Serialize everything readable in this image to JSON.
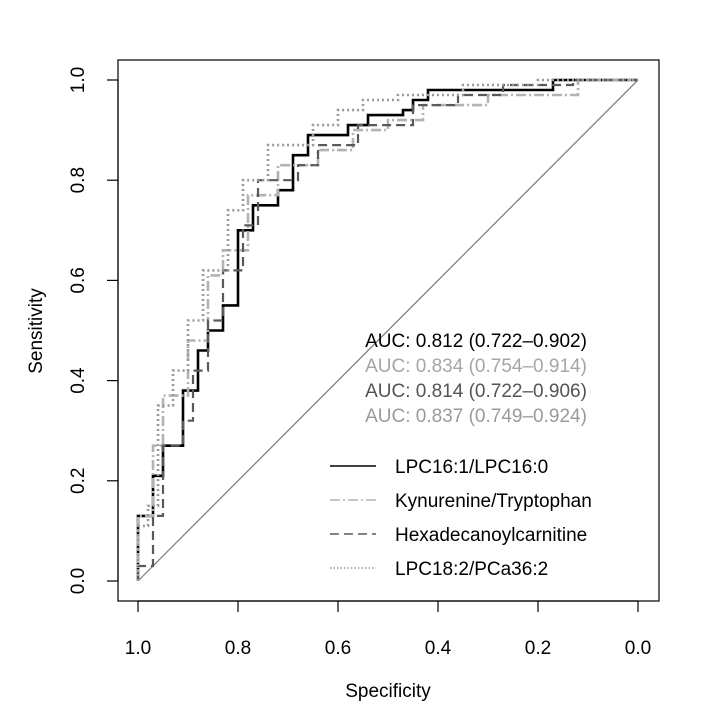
{
  "chart_data": {
    "type": "line",
    "title": "",
    "xlabel": "Specificity",
    "ylabel": "Sensitivity",
    "xlim": [
      1.0,
      0.0
    ],
    "ylim": [
      0.0,
      1.0
    ],
    "x_ticks": [
      "1.0",
      "0.8",
      "0.6",
      "0.4",
      "0.2",
      "0.0"
    ],
    "y_ticks": [
      "0.0",
      "0.2",
      "0.4",
      "0.6",
      "0.8",
      "1.0"
    ],
    "auc_labels": [
      {
        "text": "AUC: 0.812 (0.722–0.902)",
        "color": "#000000"
      },
      {
        "text": "AUC: 0.834 (0.754–0.914)",
        "color": "#a6a6a6"
      },
      {
        "text": "AUC: 0.814 (0.722–0.906)",
        "color": "#545454"
      },
      {
        "text": "AUC: 0.837 (0.749–0.924)",
        "color": "#9a9a9a"
      }
    ],
    "series": [
      {
        "name": "LPC16:1/LPC16:0",
        "color": "#000000",
        "dash": "solid",
        "width": 2.6,
        "x": [
          1.0,
          1.0,
          0.97,
          0.97,
          0.95,
          0.95,
          0.93,
          0.93,
          0.91,
          0.91,
          0.88,
          0.88,
          0.86,
          0.86,
          0.83,
          0.83,
          0.8,
          0.8,
          0.77,
          0.77,
          0.72,
          0.72,
          0.69,
          0.69,
          0.66,
          0.66,
          0.58,
          0.58,
          0.54,
          0.54,
          0.47,
          0.47,
          0.45,
          0.45,
          0.42,
          0.42,
          0.2,
          0.2,
          0.17,
          0.17,
          0.0
        ],
        "y": [
          0.0,
          0.13,
          0.13,
          0.21,
          0.21,
          0.27,
          0.27,
          0.27,
          0.27,
          0.38,
          0.38,
          0.46,
          0.46,
          0.5,
          0.5,
          0.55,
          0.55,
          0.7,
          0.7,
          0.75,
          0.75,
          0.78,
          0.78,
          0.85,
          0.85,
          0.89,
          0.89,
          0.91,
          0.91,
          0.93,
          0.93,
          0.94,
          0.94,
          0.96,
          0.96,
          0.98,
          0.98,
          0.98,
          0.98,
          1.0,
          1.0
        ]
      },
      {
        "name": "Kynurenine/Tryptophan",
        "color": "#b3b3b3",
        "dash": "dashdot",
        "width": 2.6,
        "x": [
          1.0,
          1.0,
          0.97,
          0.97,
          0.95,
          0.95,
          0.9,
          0.9,
          0.86,
          0.86,
          0.83,
          0.83,
          0.78,
          0.78,
          0.72,
          0.72,
          0.64,
          0.64,
          0.57,
          0.57,
          0.5,
          0.5,
          0.43,
          0.43,
          0.3,
          0.3,
          0.12,
          0.12,
          0.0
        ],
        "y": [
          0.0,
          0.13,
          0.13,
          0.27,
          0.27,
          0.37,
          0.37,
          0.48,
          0.48,
          0.61,
          0.61,
          0.66,
          0.66,
          0.77,
          0.77,
          0.83,
          0.83,
          0.86,
          0.86,
          0.9,
          0.9,
          0.92,
          0.92,
          0.95,
          0.95,
          0.97,
          0.97,
          1.0,
          1.0
        ]
      },
      {
        "name": "Hexadecanoylcarnitine",
        "color": "#5a5a5a",
        "dash": "dash",
        "width": 2.2,
        "x": [
          1.0,
          1.0,
          0.97,
          0.97,
          0.95,
          0.95,
          0.91,
          0.91,
          0.89,
          0.89,
          0.86,
          0.86,
          0.83,
          0.83,
          0.79,
          0.79,
          0.76,
          0.76,
          0.68,
          0.68,
          0.64,
          0.64,
          0.56,
          0.56,
          0.45,
          0.45,
          0.36,
          0.36,
          0.27,
          0.27,
          0.13,
          0.13,
          0.0
        ],
        "y": [
          0.0,
          0.03,
          0.03,
          0.13,
          0.13,
          0.27,
          0.27,
          0.32,
          0.32,
          0.42,
          0.42,
          0.52,
          0.52,
          0.62,
          0.62,
          0.71,
          0.71,
          0.8,
          0.8,
          0.83,
          0.83,
          0.87,
          0.87,
          0.91,
          0.91,
          0.95,
          0.95,
          0.97,
          0.97,
          0.99,
          0.99,
          1.0,
          1.0
        ]
      },
      {
        "name": "LPC18:2/PCa36:2",
        "color": "#9a9a9a",
        "dash": "dot",
        "width": 2.6,
        "x": [
          1.0,
          1.0,
          0.98,
          0.98,
          0.96,
          0.96,
          0.93,
          0.93,
          0.9,
          0.9,
          0.87,
          0.87,
          0.82,
          0.82,
          0.79,
          0.79,
          0.74,
          0.74,
          0.7,
          0.7,
          0.65,
          0.65,
          0.6,
          0.6,
          0.55,
          0.55,
          0.48,
          0.48,
          0.35,
          0.35,
          0.2,
          0.2,
          0.0
        ],
        "y": [
          0.0,
          0.11,
          0.11,
          0.15,
          0.15,
          0.35,
          0.35,
          0.42,
          0.42,
          0.52,
          0.52,
          0.62,
          0.62,
          0.74,
          0.74,
          0.8,
          0.8,
          0.87,
          0.87,
          0.87,
          0.87,
          0.91,
          0.91,
          0.94,
          0.94,
          0.96,
          0.96,
          0.97,
          0.97,
          0.99,
          0.99,
          1.0,
          1.0
        ]
      }
    ]
  }
}
